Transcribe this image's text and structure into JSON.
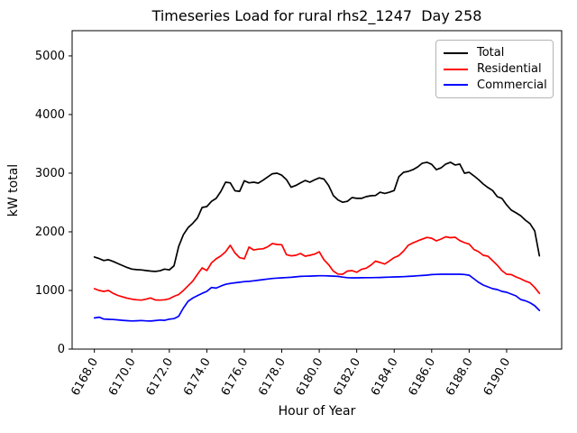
{
  "chart_data": {
    "type": "line",
    "title": "Timeseries Load for rural rhs2_1247  Day 258",
    "xlabel": "Hour of Year",
    "ylabel": "kW total",
    "xlim": [
      6166.8125,
      6192.9375
    ],
    "ylim": [
      0,
      5430
    ],
    "grid": false,
    "legend_position": "upper right",
    "x_ticks": [
      6168,
      6170,
      6172,
      6174,
      6176,
      6178,
      6180,
      6182,
      6184,
      6186,
      6188,
      6190
    ],
    "x_tick_labels": [
      "6168.0",
      "6170.0",
      "6172.0",
      "6174.0",
      "6176.0",
      "6178.0",
      "6180.0",
      "6182.0",
      "6184.0",
      "6186.0",
      "6188.0",
      "6190.0"
    ],
    "y_ticks": [
      0,
      1000,
      2000,
      3000,
      4000,
      5000
    ],
    "y_tick_labels": [
      "0",
      "1000",
      "2000",
      "3000",
      "4000",
      "5000"
    ],
    "x_start": 6168.0,
    "x_step": 0.25,
    "series": [
      {
        "name": "Total",
        "color": "#000000",
        "values": [
          1570,
          1545,
          1510,
          1525,
          1495,
          1460,
          1425,
          1390,
          1365,
          1355,
          1350,
          1340,
          1330,
          1325,
          1335,
          1365,
          1350,
          1420,
          1750,
          1950,
          2070,
          2145,
          2235,
          2415,
          2430,
          2520,
          2570,
          2690,
          2845,
          2835,
          2700,
          2690,
          2870,
          2835,
          2845,
          2830,
          2880,
          2935,
          2990,
          3000,
          2965,
          2890,
          2760,
          2790,
          2835,
          2875,
          2845,
          2885,
          2920,
          2900,
          2790,
          2620,
          2545,
          2505,
          2520,
          2585,
          2570,
          2570,
          2600,
          2615,
          2620,
          2675,
          2655,
          2675,
          2705,
          2940,
          3015,
          3030,
          3060,
          3105,
          3170,
          3185,
          3150,
          3060,
          3090,
          3155,
          3185,
          3140,
          3155,
          3000,
          3015,
          2955,
          2890,
          2815,
          2755,
          2705,
          2600,
          2570,
          2460,
          2370,
          2325,
          2275,
          2200,
          2140,
          2015,
          1590
        ]
      },
      {
        "name": "Residential",
        "color": "#ff0000",
        "values": [
          1030,
          1000,
          985,
          1000,
          950,
          915,
          890,
          868,
          852,
          842,
          836,
          850,
          872,
          838,
          836,
          842,
          858,
          900,
          930,
          1000,
          1080,
          1160,
          1275,
          1385,
          1340,
          1470,
          1540,
          1590,
          1660,
          1770,
          1640,
          1560,
          1540,
          1740,
          1690,
          1705,
          1710,
          1745,
          1800,
          1785,
          1780,
          1610,
          1590,
          1600,
          1630,
          1585,
          1600,
          1620,
          1660,
          1525,
          1440,
          1330,
          1280,
          1276,
          1330,
          1338,
          1310,
          1360,
          1380,
          1430,
          1500,
          1476,
          1450,
          1505,
          1560,
          1595,
          1670,
          1770,
          1810,
          1845,
          1875,
          1905,
          1890,
          1846,
          1876,
          1915,
          1900,
          1907,
          1850,
          1815,
          1790,
          1700,
          1661,
          1600,
          1585,
          1507,
          1430,
          1338,
          1276,
          1270,
          1230,
          1200,
          1160,
          1130,
          1050,
          950
        ]
      },
      {
        "name": "Commercial",
        "color": "#0000ff",
        "values": [
          530,
          545,
          512,
          508,
          505,
          498,
          490,
          484,
          480,
          483,
          487,
          482,
          479,
          486,
          495,
          490,
          510,
          520,
          560,
          700,
          815,
          870,
          910,
          950,
          985,
          1050,
          1040,
          1075,
          1105,
          1120,
          1130,
          1140,
          1150,
          1155,
          1165,
          1175,
          1185,
          1195,
          1205,
          1210,
          1215,
          1220,
          1225,
          1232,
          1240,
          1243,
          1245,
          1248,
          1250,
          1250,
          1248,
          1245,
          1240,
          1228,
          1218,
          1215,
          1215,
          1216,
          1218,
          1218,
          1220,
          1222,
          1225,
          1228,
          1230,
          1232,
          1235,
          1240,
          1245,
          1250,
          1255,
          1262,
          1270,
          1274,
          1276,
          1276,
          1276,
          1276,
          1276,
          1272,
          1260,
          1200,
          1140,
          1092,
          1061,
          1030,
          1015,
          985,
          969,
          938,
          908,
          846,
          825,
          790,
          740,
          660
        ]
      }
    ]
  }
}
